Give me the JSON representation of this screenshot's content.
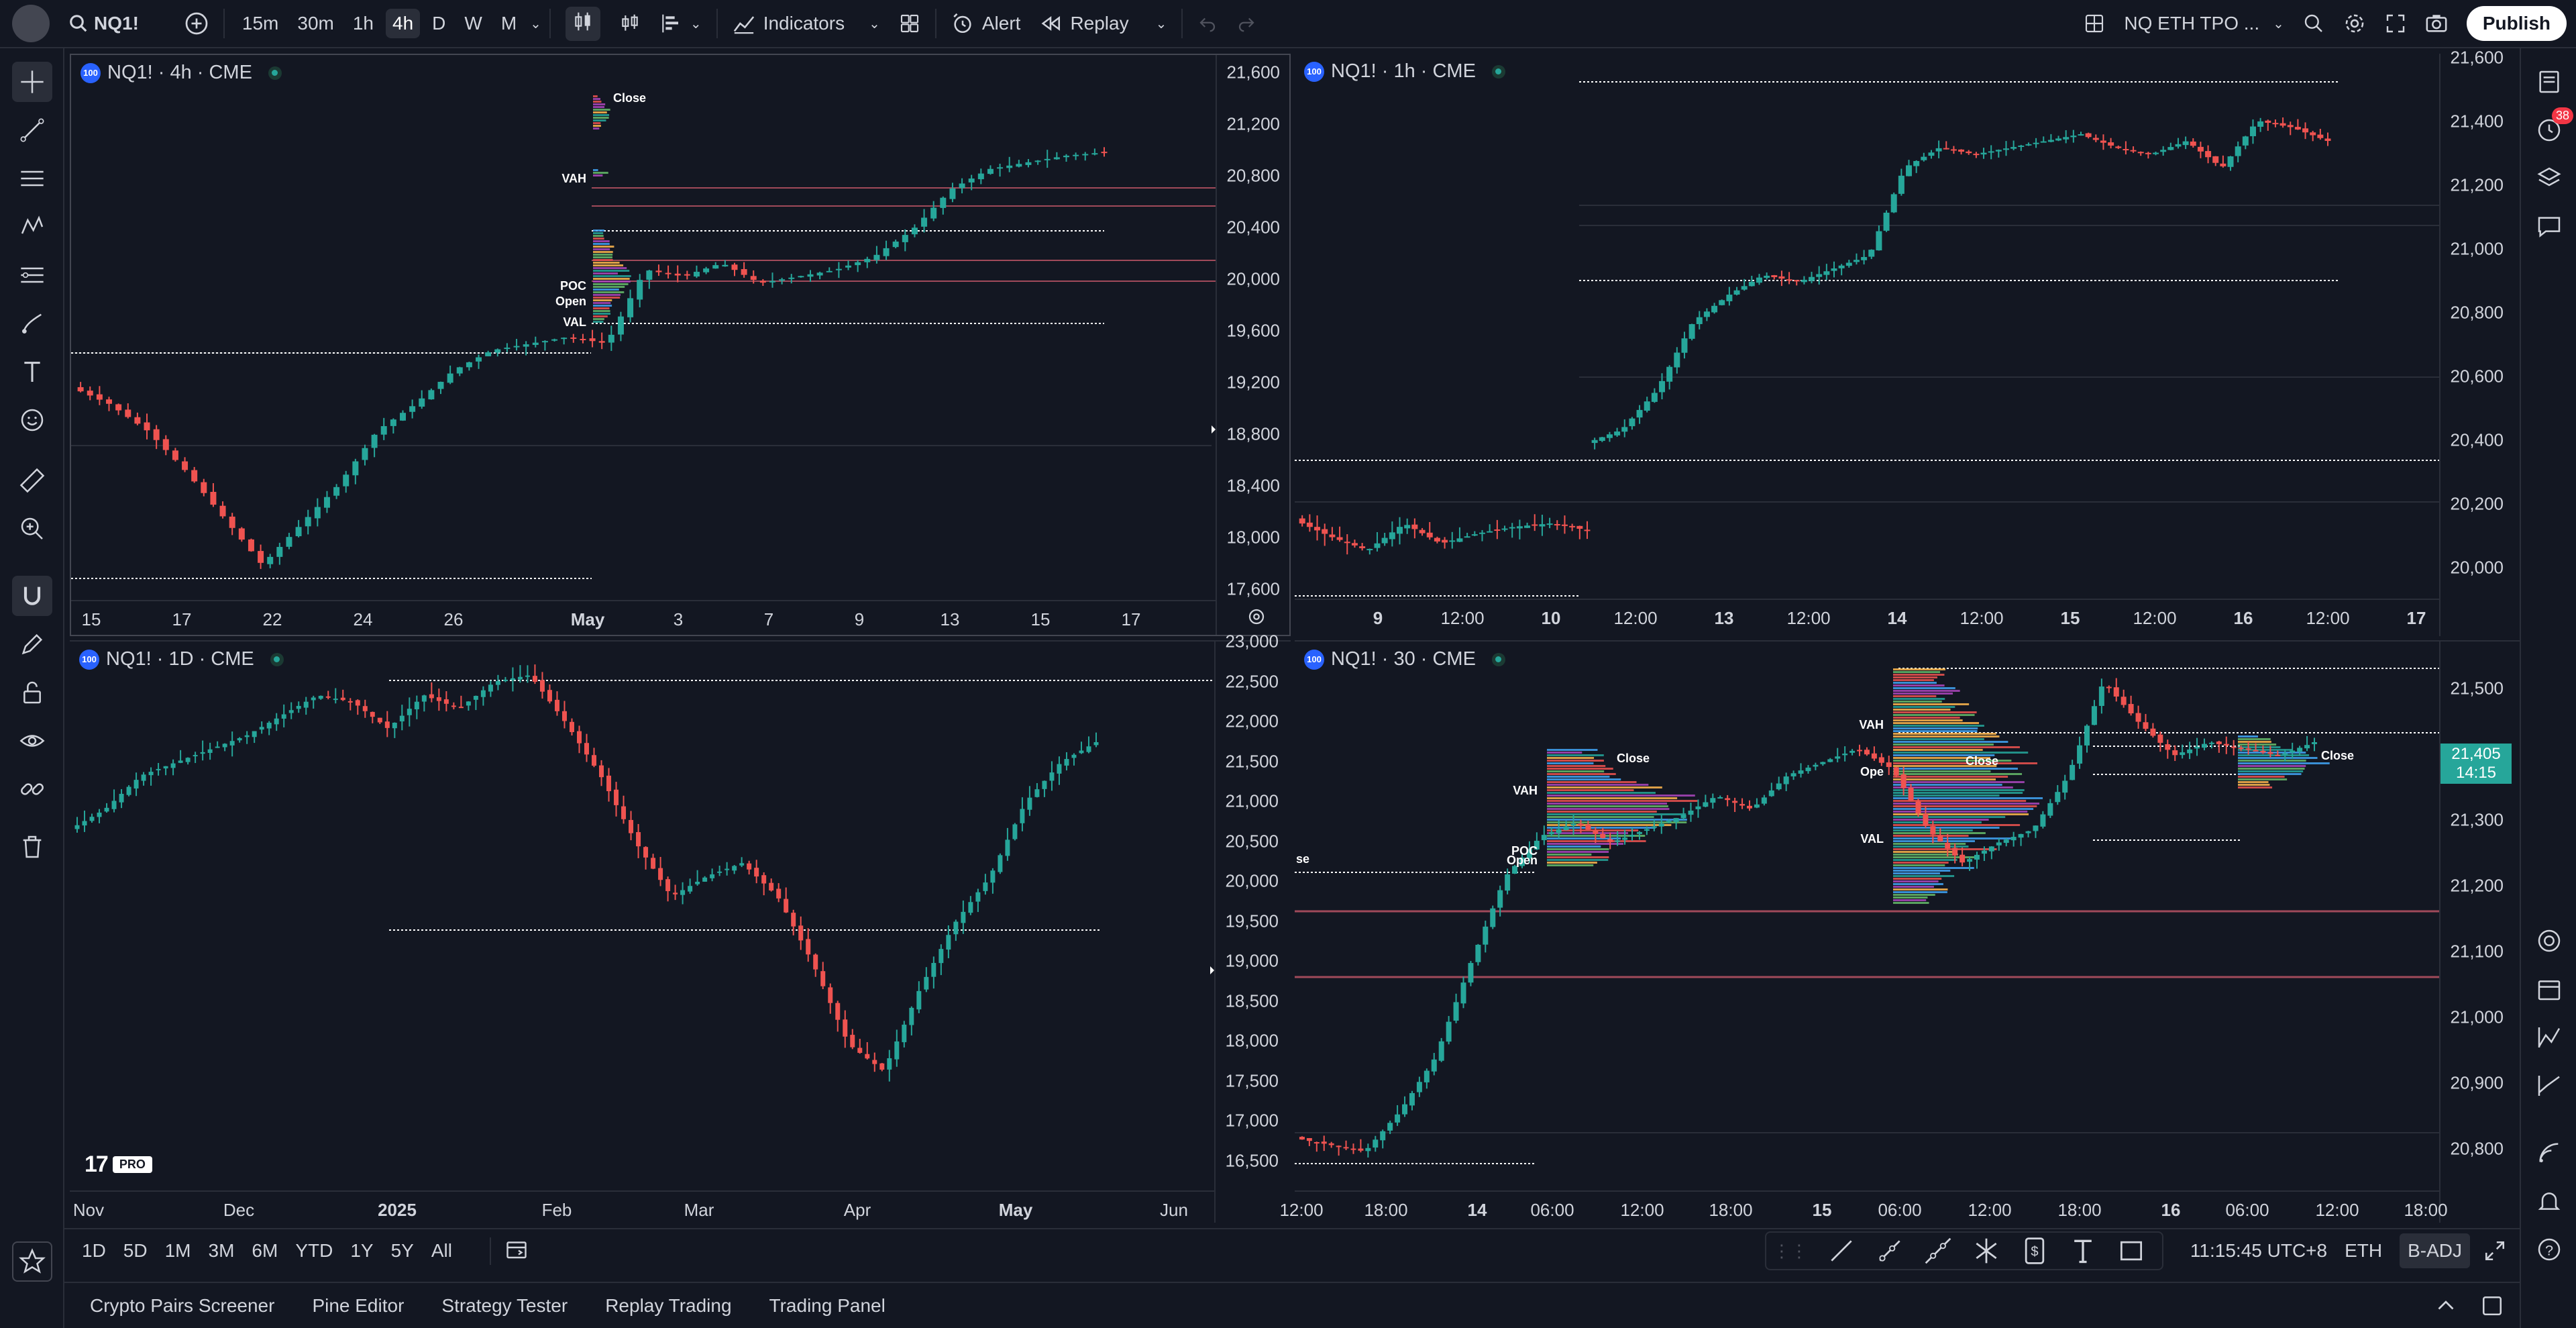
{
  "topbar": {
    "symbol": "NQ1!",
    "intervals": [
      "15m",
      "30m",
      "1h",
      "4h",
      "D",
      "W",
      "M"
    ],
    "active_interval": "4h",
    "indicators_label": "Indicators",
    "alert_label": "Alert",
    "replay_label": "Replay",
    "layout_name": "NQ ETH TPO ...",
    "publish_label": "Publish"
  },
  "panes": [
    {
      "title": "NQ1! · 4h · CME",
      "y_labels": [
        "21,600",
        "21,200",
        "20,800",
        "20,400",
        "20,000",
        "19,600",
        "19,200",
        "18,800",
        "18,400",
        "18,000",
        "17,600"
      ],
      "x_labels": [
        "15",
        "17",
        "22",
        "24",
        "26",
        "May",
        "3",
        "7",
        "9",
        "13",
        "15",
        "17"
      ],
      "profile_labels": {
        "close": "Close",
        "vah": "VAH",
        "poc": "POC",
        "open": "Open",
        "val": "VAL"
      }
    },
    {
      "title": "NQ1! · 1h · CME",
      "y_labels": [
        "21,600",
        "21,400",
        "21,200",
        "21,000",
        "20,800",
        "20,600",
        "20,400",
        "20,200",
        "20,000"
      ],
      "x_labels": [
        "9",
        "12:00",
        "10",
        "12:00",
        "13",
        "12:00",
        "14",
        "12:00",
        "15",
        "12:00",
        "16",
        "12:00",
        "17"
      ]
    },
    {
      "title": "NQ1! · 1D · CME",
      "y_labels": [
        "23,000",
        "22,500",
        "22,000",
        "21,500",
        "21,000",
        "20,500",
        "20,000",
        "19,500",
        "19,000",
        "18,500",
        "18,000",
        "17,500",
        "17,000",
        "16,500"
      ],
      "x_labels": [
        "Nov",
        "Dec",
        "2025",
        "Feb",
        "Mar",
        "Apr",
        "May",
        "Jun"
      ],
      "watermark": "PRO"
    },
    {
      "title": "NQ1! · 30 · CME",
      "y_labels": [
        "21,500",
        "21,400",
        "21,300",
        "21,200",
        "21,100",
        "21,000",
        "20,900",
        "20,800"
      ],
      "x_labels": [
        "12:00",
        "18:00",
        "14",
        "06:00",
        "12:00",
        "18:00",
        "15",
        "06:00",
        "12:00",
        "18:00",
        "16",
        "06:00",
        "12:00",
        "18:00"
      ],
      "price_badge": {
        "price": "21,405",
        "countdown": "14:15"
      },
      "profile_labels": {
        "close": "Close",
        "vah": "VAH",
        "poc": "POC",
        "open": "Open",
        "val": "VAL",
        "partial": "se",
        "open_short": "Ope"
      }
    }
  ],
  "bottombar": {
    "ranges": [
      "1D",
      "5D",
      "1M",
      "3M",
      "6M",
      "YTD",
      "1Y",
      "5Y",
      "All"
    ],
    "time": "11:15:45 UTC+8",
    "session": "ETH",
    "adj": "B-ADJ"
  },
  "footer": {
    "tabs": [
      "Crypto Pairs Screener",
      "Pine Editor",
      "Strategy Tester",
      "Replay Trading",
      "Trading Panel"
    ]
  },
  "rightbar": {
    "notification_count": "38"
  },
  "colors": {
    "bg": "#131722",
    "up": "#26a69a",
    "down": "#ef5350",
    "grid": "#2a2e39",
    "accent": "#2962ff"
  }
}
